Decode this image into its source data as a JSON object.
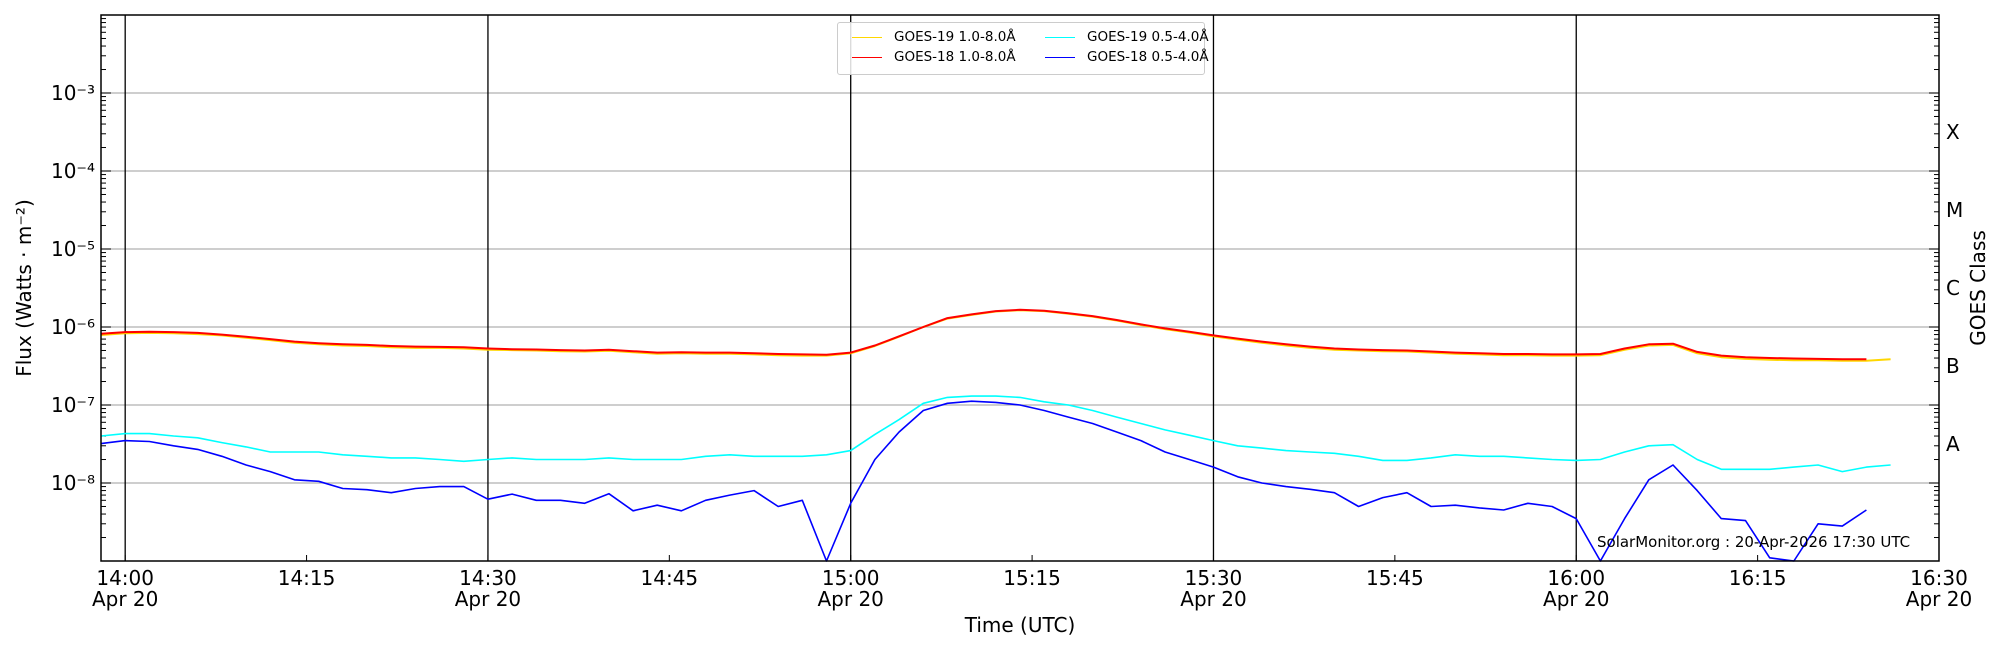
{
  "chart_data": {
    "type": "line",
    "ylabel": "Flux (Watts · m⁻²)",
    "xlabel": "Time (UTC)",
    "right_ylabel": "GOES Class",
    "yscale": "log",
    "ylim": [
      1e-09,
      0.01
    ],
    "x_units": "minutes after 14:00 UTC, Apr 20",
    "xlim": [
      -2,
      150
    ],
    "x_ticks": [
      {
        "value": 0,
        "time": "14:00",
        "date": "Apr 20"
      },
      {
        "value": 15,
        "time": "14:15",
        "date": ""
      },
      {
        "value": 30,
        "time": "14:30",
        "date": "Apr 20"
      },
      {
        "value": 45,
        "time": "14:45",
        "date": ""
      },
      {
        "value": 60,
        "time": "15:00",
        "date": "Apr 20"
      },
      {
        "value": 75,
        "time": "15:15",
        "date": ""
      },
      {
        "value": 90,
        "time": "15:30",
        "date": "Apr 20"
      },
      {
        "value": 105,
        "time": "15:45",
        "date": ""
      },
      {
        "value": 120,
        "time": "16:00",
        "date": "Apr 20"
      },
      {
        "value": 135,
        "time": "16:15",
        "date": ""
      },
      {
        "value": 150,
        "time": "16:30",
        "date": "Apr 20"
      }
    ],
    "vertical_lines": [
      0,
      30,
      60,
      90,
      120
    ],
    "y_ticks": [
      {
        "value": 1e-08,
        "label": "10⁻⁸"
      },
      {
        "value": 1e-07,
        "label": "10⁻⁷"
      },
      {
        "value": 1e-06,
        "label": "10⁻⁶"
      },
      {
        "value": 1e-05,
        "label": "10⁻⁵"
      },
      {
        "value": 0.0001,
        "label": "10⁻⁴"
      },
      {
        "value": 0.001,
        "label": "10⁻³"
      }
    ],
    "goes_classes": [
      {
        "label": "A",
        "value": 3.16e-08
      },
      {
        "label": "B",
        "value": 3.16e-07
      },
      {
        "label": "C",
        "value": 3.16e-06
      },
      {
        "label": "M",
        "value": 3.16e-05
      },
      {
        "label": "X",
        "value": 0.000316
      }
    ],
    "grid": true,
    "legend_position": "top-center",
    "x": [
      -2,
      0,
      2,
      4,
      6,
      8,
      10,
      12,
      14,
      16,
      18,
      20,
      22,
      24,
      26,
      28,
      30,
      32,
      34,
      36,
      38,
      40,
      42,
      44,
      46,
      48,
      50,
      52,
      54,
      56,
      58,
      60,
      62,
      64,
      66,
      68,
      70,
      72,
      74,
      76,
      78,
      80,
      82,
      84,
      86,
      88,
      90,
      92,
      94,
      96,
      98,
      100,
      102,
      104,
      106,
      108,
      110,
      112,
      114,
      116,
      118,
      120,
      122,
      124,
      126,
      128,
      130,
      132,
      134,
      136,
      138,
      140,
      142,
      144,
      146
    ],
    "series": [
      {
        "name": "GOES-19 1.0-8.0Å",
        "color": "#ffd700",
        "values": [
          7.9e-07,
          8.3e-07,
          8.4e-07,
          8.3e-07,
          8.1e-07,
          7.8e-07,
          7.3e-07,
          6.8e-07,
          6.3e-07,
          6e-07,
          5.8e-07,
          5.7e-07,
          5.5e-07,
          5.4e-07,
          5.4e-07,
          5.3e-07,
          5.1e-07,
          5.05e-07,
          5e-07,
          4.9e-07,
          4.85e-07,
          4.95e-07,
          4.75e-07,
          4.55e-07,
          4.6e-07,
          4.55e-07,
          4.55e-07,
          4.45e-07,
          4.35e-07,
          4.3e-07,
          4.3e-07,
          4.6e-07,
          5.7e-07,
          7.5e-07,
          1e-06,
          1.28e-06,
          1.43e-06,
          1.58e-06,
          1.64e-06,
          1.6e-06,
          1.48e-06,
          1.36e-06,
          1.21e-06,
          1.06e-06,
          9.4e-07,
          8.5e-07,
          7.6e-07,
          6.9e-07,
          6.3e-07,
          5.8e-07,
          5.4e-07,
          5.1e-07,
          5e-07,
          4.9e-07,
          4.85e-07,
          4.7e-07,
          4.55e-07,
          4.45e-07,
          4.35e-07,
          4.35e-07,
          4.3e-07,
          4.3e-07,
          4.35e-07,
          5.1e-07,
          5.8e-07,
          5.9e-07,
          4.6e-07,
          4.1e-07,
          3.9e-07,
          3.8e-07,
          3.75e-07,
          3.75e-07,
          3.7e-07,
          3.7e-07,
          3.85e-07
        ]
      },
      {
        "name": "GOES-18 1.0-8.0Å",
        "color": "#ff0000",
        "values": [
          8.2e-07,
          8.6e-07,
          8.7e-07,
          8.6e-07,
          8.4e-07,
          8e-07,
          7.5e-07,
          7e-07,
          6.5e-07,
          6.2e-07,
          6e-07,
          5.9e-07,
          5.7e-07,
          5.6e-07,
          5.55e-07,
          5.5e-07,
          5.3e-07,
          5.2e-07,
          5.15e-07,
          5.05e-07,
          5e-07,
          5.1e-07,
          4.9e-07,
          4.7e-07,
          4.75e-07,
          4.7e-07,
          4.7e-07,
          4.6e-07,
          4.5e-07,
          4.45e-07,
          4.4e-07,
          4.7e-07,
          5.8e-07,
          7.6e-07,
          1e-06,
          1.3e-06,
          1.45e-06,
          1.6e-06,
          1.66e-06,
          1.62e-06,
          1.5e-06,
          1.38e-06,
          1.23e-06,
          1.08e-06,
          9.6e-07,
          8.7e-07,
          7.8e-07,
          7.1e-07,
          6.5e-07,
          6e-07,
          5.6e-07,
          5.3e-07,
          5.15e-07,
          5.05e-07,
          5e-07,
          4.85e-07,
          4.7e-07,
          4.6e-07,
          4.5e-07,
          4.5e-07,
          4.45e-07,
          4.45e-07,
          4.5e-07,
          5.3e-07,
          6e-07,
          6.1e-07,
          4.8e-07,
          4.3e-07,
          4.1e-07,
          4e-07,
          3.95e-07,
          3.9e-07,
          3.85e-07,
          3.85e-07,
          null
        ]
      },
      {
        "name": "GOES-19 0.5-4.0Å",
        "color": "#00ffff",
        "values": [
          4e-08,
          4.3e-08,
          4.3e-08,
          4e-08,
          3.8e-08,
          3.3e-08,
          2.9e-08,
          2.5e-08,
          2.5e-08,
          2.5e-08,
          2.3e-08,
          2.2e-08,
          2.1e-08,
          2.1e-08,
          2e-08,
          1.9e-08,
          2e-08,
          2.1e-08,
          2e-08,
          2e-08,
          2e-08,
          2.1e-08,
          2e-08,
          2e-08,
          2e-08,
          2.2e-08,
          2.3e-08,
          2.2e-08,
          2.2e-08,
          2.2e-08,
          2.3e-08,
          2.6e-08,
          4.2e-08,
          6.5e-08,
          1.05e-07,
          1.25e-07,
          1.3e-07,
          1.3e-07,
          1.25e-07,
          1.1e-07,
          1e-07,
          8.5e-08,
          7e-08,
          5.8e-08,
          4.8e-08,
          4.1e-08,
          3.5e-08,
          3e-08,
          2.8e-08,
          2.6e-08,
          2.5e-08,
          2.4e-08,
          2.2e-08,
          1.95e-08,
          1.95e-08,
          2.1e-08,
          2.3e-08,
          2.2e-08,
          2.2e-08,
          2.1e-08,
          2e-08,
          1.95e-08,
          2e-08,
          2.5e-08,
          3e-08,
          3.1e-08,
          2e-08,
          1.5e-08,
          1.5e-08,
          1.5e-08,
          1.6e-08,
          1.7e-08,
          1.4e-08,
          1.6e-08,
          1.7e-08
        ]
      },
      {
        "name": "GOES-18 0.5-4.0Å",
        "color": "#0000ff",
        "values": [
          3.2e-08,
          3.5e-08,
          3.4e-08,
          3e-08,
          2.7e-08,
          2.2e-08,
          1.7e-08,
          1.4e-08,
          1.1e-08,
          1.05e-08,
          8.5e-09,
          8.2e-09,
          7.5e-09,
          8.5e-09,
          9e-09,
          9e-09,
          6.2e-09,
          7.2e-09,
          6e-09,
          6e-09,
          5.5e-09,
          7.3e-09,
          4.4e-09,
          5.2e-09,
          4.4e-09,
          6e-09,
          7e-09,
          8e-09,
          5e-09,
          6e-09,
          1e-09,
          5.5e-09,
          2e-08,
          4.5e-08,
          8.5e-08,
          1.05e-07,
          1.12e-07,
          1.08e-07,
          1e-07,
          8.5e-08,
          7e-08,
          5.8e-08,
          4.5e-08,
          3.5e-08,
          2.5e-08,
          2e-08,
          1.6e-08,
          1.2e-08,
          1e-08,
          9e-09,
          8.3e-09,
          7.5e-09,
          5e-09,
          6.5e-09,
          7.5e-09,
          5e-09,
          5.2e-09,
          4.8e-09,
          4.5e-09,
          5.5e-09,
          5e-09,
          3.5e-09,
          1e-09,
          3.5e-09,
          1.1e-08,
          1.7e-08,
          8e-09,
          3.5e-09,
          3.3e-09,
          1.1e-09,
          1e-09,
          3e-09,
          2.8e-09,
          4.5e-09,
          null
        ]
      }
    ],
    "watermark": "SolarMonitor.org : 20-Apr-2026 17:30 UTC"
  }
}
